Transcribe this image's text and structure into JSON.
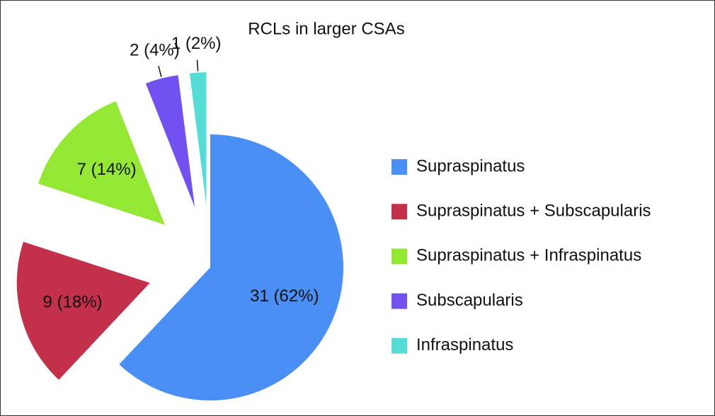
{
  "chart_data": {
    "type": "pie",
    "title": "RCLs in larger CSAs",
    "categories": [
      "Supraspinatus",
      "Supraspinatus + Subscapularis",
      "Supraspinatus + Infraspinatus",
      "Subscapularis",
      "Infraspinatus"
    ],
    "values": [
      31,
      9,
      7,
      2,
      1
    ],
    "value_labels": [
      "31 (62%)",
      "9 (18%)",
      "7 (14%)",
      "2 (4%)",
      "1 (2%)"
    ],
    "colors": [
      "#4a8ff5",
      "#c3304a",
      "#94e834",
      "#7350f0",
      "#55ddd5"
    ],
    "legend": "right"
  }
}
